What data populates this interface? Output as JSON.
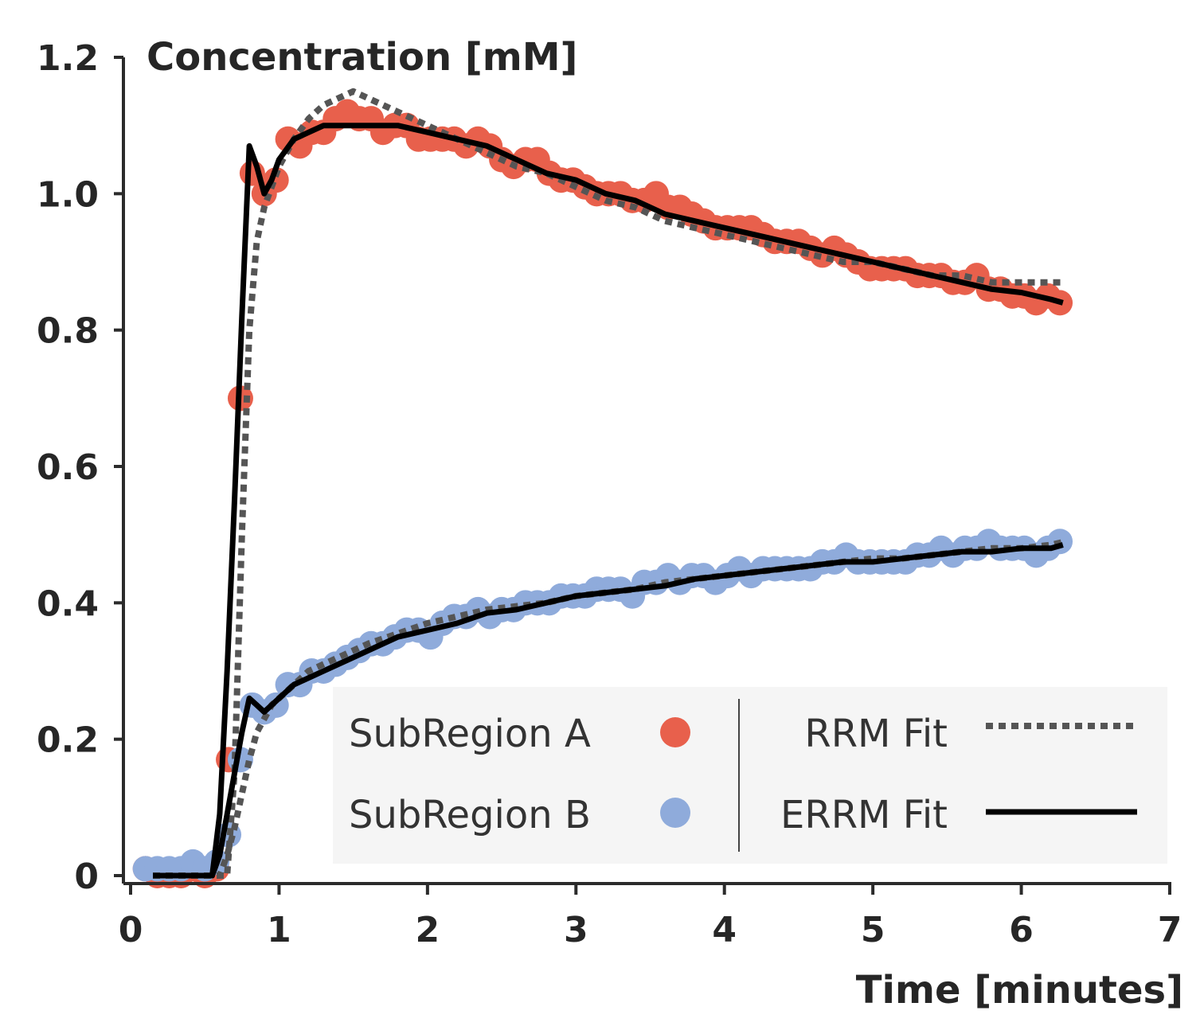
{
  "chart_data": {
    "type": "scatter",
    "ylabel": "Concentration [mM]",
    "xlabel": "Time [minutes]",
    "xlim": [
      0,
      7
    ],
    "ylim": [
      0,
      1.2
    ],
    "x_ticks": [
      "0",
      "1",
      "2",
      "3",
      "4",
      "5",
      "6",
      "7"
    ],
    "y_ticks": [
      "0",
      "0.2",
      "0.4",
      "0.6",
      "0.8",
      "1.0",
      "1.2"
    ],
    "grid": false,
    "legend_position": "bottom-right",
    "series": [
      {
        "name": "SubRegion A",
        "kind": "points",
        "color": "#e8604c",
        "x": [
          0.1,
          0.18,
          0.26,
          0.34,
          0.42,
          0.5,
          0.58,
          0.66,
          0.74,
          0.82,
          0.9,
          0.98,
          1.06,
          1.14,
          1.22,
          1.3,
          1.38,
          1.46,
          1.54,
          1.62,
          1.7,
          1.78,
          1.86,
          1.94,
          2.02,
          2.1,
          2.18,
          2.26,
          2.34,
          2.42,
          2.5,
          2.58,
          2.66,
          2.74,
          2.82,
          2.9,
          2.98,
          3.06,
          3.14,
          3.22,
          3.3,
          3.38,
          3.46,
          3.54,
          3.62,
          3.7,
          3.78,
          3.86,
          3.94,
          4.02,
          4.1,
          4.18,
          4.26,
          4.34,
          4.42,
          4.5,
          4.58,
          4.66,
          4.74,
          4.82,
          4.9,
          4.98,
          5.06,
          5.14,
          5.22,
          5.3,
          5.38,
          5.46,
          5.54,
          5.62,
          5.7,
          5.78,
          5.86,
          5.94,
          6.02,
          6.1,
          6.18,
          6.26
        ],
        "y": [
          0.01,
          0.0,
          0.0,
          0.0,
          0.01,
          0.0,
          0.01,
          0.17,
          0.7,
          1.03,
          1.0,
          1.02,
          1.08,
          1.07,
          1.09,
          1.09,
          1.11,
          1.12,
          1.11,
          1.11,
          1.09,
          1.1,
          1.1,
          1.08,
          1.08,
          1.08,
          1.08,
          1.07,
          1.08,
          1.07,
          1.05,
          1.04,
          1.05,
          1.05,
          1.03,
          1.02,
          1.02,
          1.01,
          1.0,
          1.0,
          1.0,
          0.99,
          0.99,
          1.0,
          0.98,
          0.98,
          0.97,
          0.96,
          0.95,
          0.95,
          0.95,
          0.95,
          0.94,
          0.93,
          0.93,
          0.93,
          0.92,
          0.91,
          0.92,
          0.91,
          0.9,
          0.89,
          0.89,
          0.89,
          0.89,
          0.88,
          0.88,
          0.88,
          0.87,
          0.87,
          0.88,
          0.86,
          0.86,
          0.85,
          0.85,
          0.84,
          0.85,
          0.84
        ]
      },
      {
        "name": "SubRegion B",
        "kind": "points",
        "color": "#8fabdb",
        "x": [
          0.1,
          0.18,
          0.26,
          0.34,
          0.42,
          0.5,
          0.58,
          0.66,
          0.74,
          0.82,
          0.9,
          0.98,
          1.06,
          1.14,
          1.22,
          1.3,
          1.38,
          1.46,
          1.54,
          1.62,
          1.7,
          1.78,
          1.86,
          1.94,
          2.02,
          2.1,
          2.18,
          2.26,
          2.34,
          2.42,
          2.5,
          2.58,
          2.66,
          2.74,
          2.82,
          2.9,
          2.98,
          3.06,
          3.14,
          3.22,
          3.3,
          3.38,
          3.46,
          3.54,
          3.62,
          3.7,
          3.78,
          3.86,
          3.94,
          4.02,
          4.1,
          4.18,
          4.26,
          4.34,
          4.42,
          4.5,
          4.58,
          4.66,
          4.74,
          4.82,
          4.9,
          4.98,
          5.06,
          5.14,
          5.22,
          5.3,
          5.38,
          5.46,
          5.54,
          5.62,
          5.7,
          5.78,
          5.86,
          5.94,
          6.02,
          6.1,
          6.18,
          6.26
        ],
        "y": [
          0.01,
          0.01,
          0.01,
          0.01,
          0.02,
          0.01,
          0.02,
          0.06,
          0.17,
          0.25,
          0.24,
          0.25,
          0.28,
          0.28,
          0.3,
          0.3,
          0.31,
          0.32,
          0.33,
          0.34,
          0.34,
          0.35,
          0.36,
          0.36,
          0.35,
          0.37,
          0.38,
          0.38,
          0.39,
          0.38,
          0.39,
          0.39,
          0.4,
          0.4,
          0.4,
          0.41,
          0.41,
          0.41,
          0.42,
          0.42,
          0.42,
          0.41,
          0.43,
          0.43,
          0.44,
          0.43,
          0.44,
          0.44,
          0.43,
          0.44,
          0.45,
          0.44,
          0.45,
          0.45,
          0.45,
          0.45,
          0.45,
          0.46,
          0.46,
          0.47,
          0.46,
          0.46,
          0.46,
          0.46,
          0.46,
          0.47,
          0.47,
          0.48,
          0.47,
          0.48,
          0.48,
          0.49,
          0.48,
          0.48,
          0.48,
          0.47,
          0.48,
          0.49
        ]
      },
      {
        "name": "RRM Fit",
        "kind": "line",
        "style": "dotted",
        "color": "#555555",
        "segments": [
          {
            "x": [
              0.15,
              0.25,
              0.35,
              0.45,
              0.55,
              0.6,
              0.65,
              0.7,
              0.75,
              0.8,
              0.85,
              0.9,
              0.95,
              1.0,
              1.1,
              1.2,
              1.3,
              1.4,
              1.5,
              1.6,
              1.8,
              2.0,
              2.2,
              2.4,
              2.6,
              2.8,
              3.0,
              3.2,
              3.4,
              3.6,
              3.8,
              4.0,
              4.2,
              4.4,
              4.6,
              4.8,
              5.0,
              5.2,
              5.4,
              5.6,
              5.8,
              6.0,
              6.2,
              6.3
            ],
            "y": [
              0.0,
              0.0,
              0.0,
              0.0,
              0.0,
              0.0,
              0.0,
              0.15,
              0.5,
              0.8,
              0.93,
              0.98,
              1.01,
              1.04,
              1.08,
              1.11,
              1.13,
              1.14,
              1.15,
              1.14,
              1.12,
              1.1,
              1.08,
              1.06,
              1.04,
              1.03,
              1.01,
              0.99,
              0.98,
              0.96,
              0.95,
              0.94,
              0.93,
              0.92,
              0.91,
              0.9,
              0.9,
              0.89,
              0.88,
              0.88,
              0.87,
              0.87,
              0.87,
              0.87
            ]
          },
          {
            "x": [
              0.15,
              0.25,
              0.35,
              0.45,
              0.55,
              0.6,
              0.65,
              0.7,
              0.75,
              0.8,
              0.85,
              0.9,
              0.95,
              1.0,
              1.1,
              1.2,
              1.3,
              1.4,
              1.5,
              1.6,
              1.8,
              2.0,
              2.2,
              2.4,
              2.6,
              2.8,
              3.0,
              3.2,
              3.4,
              3.6,
              3.8,
              4.0,
              4.2,
              4.4,
              4.6,
              4.8,
              5.0,
              5.2,
              5.4,
              5.6,
              5.8,
              6.0,
              6.2,
              6.3
            ],
            "y": [
              0.0,
              0.0,
              0.0,
              0.0,
              0.0,
              0.0,
              0.03,
              0.07,
              0.12,
              0.17,
              0.21,
              0.23,
              0.25,
              0.26,
              0.28,
              0.3,
              0.31,
              0.32,
              0.33,
              0.34,
              0.355,
              0.37,
              0.38,
              0.39,
              0.395,
              0.4,
              0.41,
              0.415,
              0.42,
              0.43,
              0.435,
              0.44,
              0.445,
              0.45,
              0.455,
              0.46,
              0.465,
              0.465,
              0.47,
              0.475,
              0.48,
              0.48,
              0.485,
              0.49
            ]
          }
        ]
      },
      {
        "name": "ERRM Fit",
        "kind": "line",
        "style": "solid",
        "color": "#000000",
        "segments": [
          {
            "x": [
              0.15,
              0.25,
              0.35,
              0.45,
              0.55,
              0.6,
              0.65,
              0.7,
              0.75,
              0.8,
              0.85,
              0.9,
              0.95,
              1.0,
              1.1,
              1.2,
              1.3,
              1.4,
              1.5,
              1.6,
              1.8,
              2.0,
              2.2,
              2.4,
              2.6,
              2.8,
              3.0,
              3.2,
              3.4,
              3.6,
              3.8,
              4.0,
              4.2,
              4.4,
              4.6,
              4.8,
              5.0,
              5.2,
              5.4,
              5.6,
              5.8,
              6.0,
              6.2,
              6.28
            ],
            "y": [
              0.0,
              0.0,
              0.0,
              0.0,
              0.0,
              0.09,
              0.3,
              0.55,
              0.82,
              1.07,
              1.04,
              1.0,
              1.02,
              1.05,
              1.08,
              1.09,
              1.1,
              1.1,
              1.1,
              1.1,
              1.1,
              1.09,
              1.08,
              1.07,
              1.05,
              1.03,
              1.02,
              1.0,
              0.99,
              0.97,
              0.96,
              0.95,
              0.94,
              0.93,
              0.92,
              0.91,
              0.9,
              0.89,
              0.88,
              0.87,
              0.86,
              0.855,
              0.845,
              0.84
            ]
          },
          {
            "x": [
              0.15,
              0.25,
              0.35,
              0.45,
              0.55,
              0.6,
              0.65,
              0.7,
              0.75,
              0.8,
              0.85,
              0.9,
              0.95,
              1.0,
              1.1,
              1.2,
              1.3,
              1.4,
              1.5,
              1.6,
              1.8,
              2.0,
              2.2,
              2.4,
              2.6,
              2.8,
              3.0,
              3.2,
              3.4,
              3.6,
              3.8,
              4.0,
              4.2,
              4.4,
              4.6,
              4.8,
              5.0,
              5.2,
              5.4,
              5.6,
              5.8,
              6.0,
              6.2,
              6.28
            ],
            "y": [
              0.0,
              0.0,
              0.0,
              0.0,
              0.0,
              0.03,
              0.09,
              0.15,
              0.21,
              0.26,
              0.25,
              0.24,
              0.25,
              0.26,
              0.28,
              0.29,
              0.3,
              0.31,
              0.32,
              0.33,
              0.35,
              0.36,
              0.37,
              0.385,
              0.39,
              0.4,
              0.41,
              0.415,
              0.42,
              0.425,
              0.435,
              0.44,
              0.445,
              0.45,
              0.455,
              0.46,
              0.46,
              0.465,
              0.47,
              0.475,
              0.475,
              0.48,
              0.48,
              0.485
            ]
          }
        ]
      }
    ],
    "legend": {
      "entries": [
        {
          "label": "SubRegion A",
          "series": 0
        },
        {
          "label": "SubRegion B",
          "series": 1
        },
        {
          "label": "RRM Fit",
          "series": 2
        },
        {
          "label": "ERRM Fit",
          "series": 3
        }
      ]
    }
  }
}
